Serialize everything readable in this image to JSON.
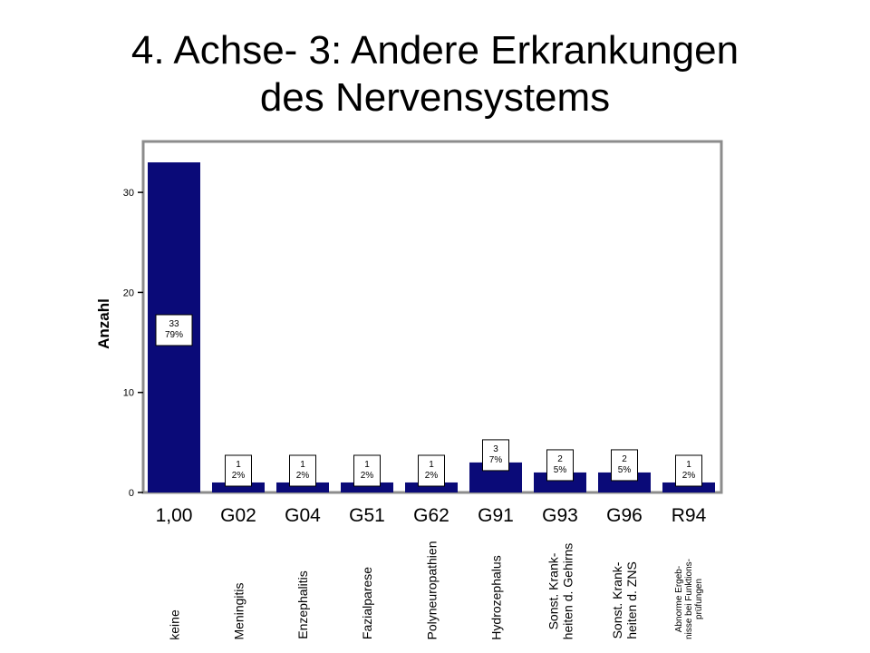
{
  "title_lines": [
    "4. Achse- 3: Andere Erkrankungen",
    "des Nervensystems"
  ],
  "chart_data": {
    "type": "bar",
    "ylabel": "Anzahl",
    "ylim": [
      0,
      34
    ],
    "yticks": [
      0,
      10,
      20,
      30
    ],
    "grid": false,
    "categories": [
      "1,00",
      "G02",
      "G04",
      "G51",
      "G62",
      "G91",
      "G93",
      "G96",
      "R94"
    ],
    "category_descriptions": [
      [
        "keine"
      ],
      [
        "Meningitis"
      ],
      [
        "Enzephalitis"
      ],
      [
        "Fazialparese"
      ],
      [
        "Polyneuropathien"
      ],
      [
        "Hydrozephalus"
      ],
      [
        "Sonst. Krank-",
        "heiten d. Gehirns"
      ],
      [
        "Sonst. Krank-",
        "heiten d. ZNS"
      ],
      [
        "Abnorme Ergeb-",
        "nisse bei Funktions-",
        "prüfungen"
      ]
    ],
    "values": [
      33,
      1,
      1,
      1,
      1,
      3,
      2,
      2,
      1
    ],
    "data_labels": [
      [
        "33",
        "79%"
      ],
      [
        "1",
        "2%"
      ],
      [
        "1",
        "2%"
      ],
      [
        "1",
        "2%"
      ],
      [
        "1",
        "2%"
      ],
      [
        "3",
        "7%"
      ],
      [
        "2",
        "5%"
      ],
      [
        "2",
        "5%"
      ],
      [
        "1",
        "2%"
      ]
    ],
    "bar_color": "#0a0a78",
    "frame_color": "#8c8c8c"
  }
}
